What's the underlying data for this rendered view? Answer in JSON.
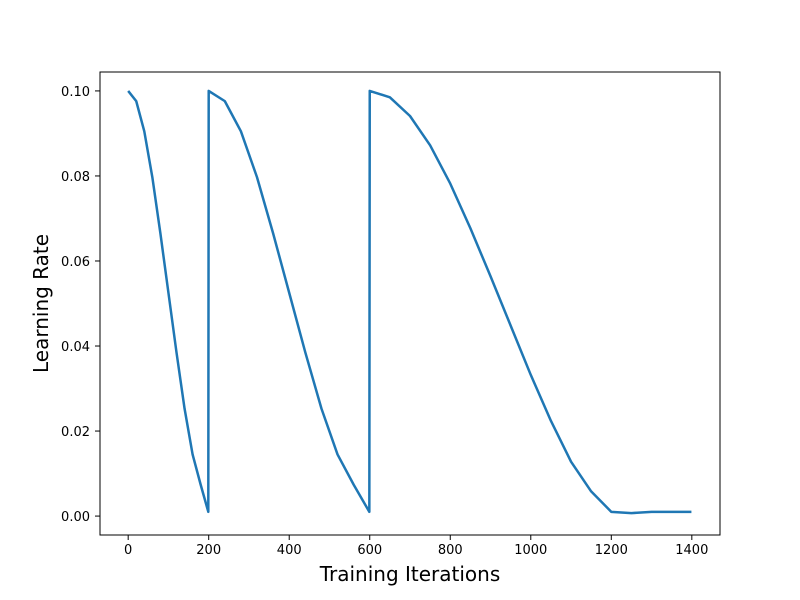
{
  "chart_data": {
    "type": "line",
    "title": "",
    "xlabel": "Training Iterations",
    "ylabel": "Learning Rate",
    "xlim": [
      -70,
      1470
    ],
    "ylim": [
      -0.00445,
      0.10445
    ],
    "grid": false,
    "legend": "none",
    "x_ticks": [
      0,
      200,
      400,
      600,
      800,
      1000,
      1200,
      1400
    ],
    "x_tick_labels": [
      "0",
      "200",
      "400",
      "600",
      "800",
      "1000",
      "1200",
      "1400"
    ],
    "y_ticks": [
      0.0,
      0.02,
      0.04,
      0.06,
      0.08,
      0.1
    ],
    "y_tick_labels": [
      "0.00",
      "0.02",
      "0.04",
      "0.06",
      "0.08",
      "0.10"
    ],
    "series": [
      {
        "color": "#1f77b4",
        "x": [
          0,
          20,
          40,
          60,
          80,
          100,
          120,
          140,
          160,
          180,
          199,
          200,
          240,
          280,
          320,
          360,
          400,
          440,
          480,
          520,
          560,
          599,
          600,
          650,
          700,
          750,
          800,
          850,
          900,
          950,
          1000,
          1050,
          1100,
          1150,
          1200,
          1250,
          1300,
          1350,
          1399
        ],
        "y": [
          0.1,
          0.0976,
          0.0905,
          0.0797,
          0.0665,
          0.0525,
          0.0385,
          0.0253,
          0.0145,
          0.0074,
          0.001,
          0.1,
          0.0976,
          0.0905,
          0.0797,
          0.0665,
          0.0525,
          0.0385,
          0.0253,
          0.0145,
          0.0074,
          0.001,
          0.1,
          0.0985,
          0.0941,
          0.0872,
          0.0782,
          0.0677,
          0.0564,
          0.0448,
          0.0332,
          0.0224,
          0.0128,
          0.0058,
          0.001,
          0.0007,
          0.001,
          0.001,
          0.001
        ]
      }
    ]
  }
}
